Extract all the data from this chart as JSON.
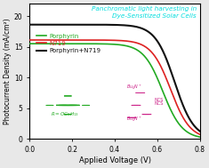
{
  "title_line1": "Panchromatic light harvesting in",
  "title_line2": "Dye-Sensitized Solar Cells",
  "title_color": "#00DDDD",
  "xlabel": "Applied Voltage (V)",
  "ylabel": "Photocurrent Density (mA/cm²)",
  "xlim": [
    0,
    0.8
  ],
  "ylim": [
    0,
    22
  ],
  "yticks": [
    0,
    5,
    10,
    15,
    20
  ],
  "xticks": [
    0.0,
    0.2,
    0.4,
    0.6,
    0.8
  ],
  "bg_color": "#e8e8e8",
  "plot_bg_color": "#ffffff",
  "porphyrin_color": "#22aa22",
  "n719_color": "#dd2222",
  "combo_color": "#111111",
  "porphyrin_jsc": 15.5,
  "porphyrin_voc": 0.68,
  "n719_jsc": 16.1,
  "n719_voc": 0.72,
  "combo_jsc": 18.6,
  "combo_voc": 0.74,
  "legend_labels": [
    "Porphyrin",
    "N719",
    "Porphyrin+N719"
  ]
}
